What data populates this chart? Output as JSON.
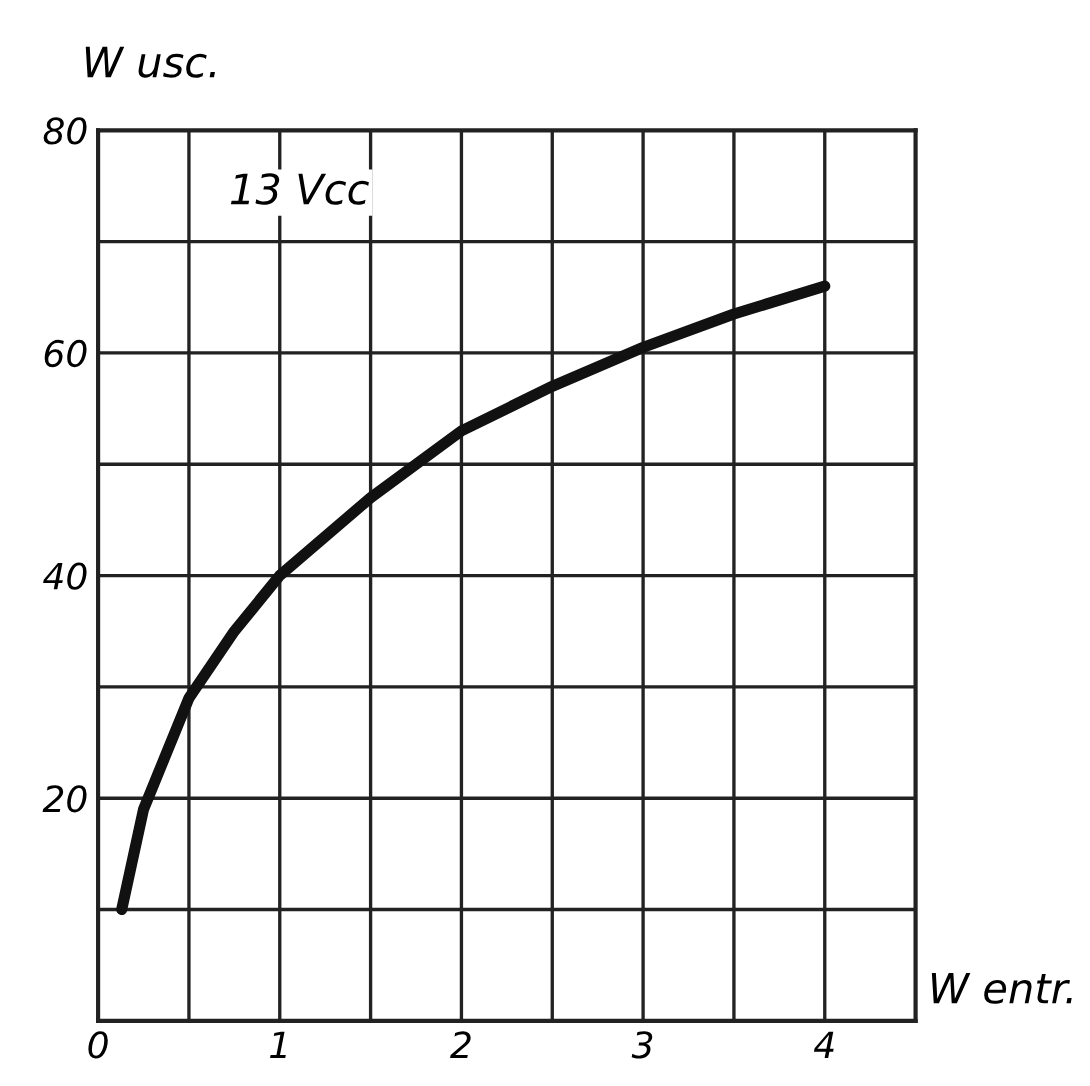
{
  "chart_data": {
    "type": "line",
    "xlabel": "W entr.",
    "ylabel": "W usc.",
    "annotations": [
      "13 Vcc"
    ],
    "x": [
      0.13,
      0.25,
      0.5,
      0.75,
      1,
      1.5,
      2,
      2.5,
      3,
      3.5,
      4
    ],
    "series": [
      {
        "color": "#111111",
        "values": [
          10,
          19,
          29,
          35,
          40,
          47,
          53,
          57,
          60.5,
          63.5,
          66
        ]
      }
    ],
    "xlim": [
      0,
      4.5
    ],
    "ylim": [
      0,
      80
    ],
    "xticks": [
      0,
      {
        "value": 0.5,
        "label": null
      },
      1,
      {
        "value": 1.5,
        "label": null
      },
      2,
      {
        "value": 2.5,
        "label": null
      },
      3,
      {
        "value": 3.5,
        "label": null
      },
      4,
      {
        "value": 4.5,
        "label": null
      }
    ],
    "yticks": [
      {
        "value": 10,
        "label": null
      },
      20,
      {
        "value": 30,
        "label": null
      },
      40,
      {
        "value": 50,
        "label": null
      },
      60,
      {
        "value": 70,
        "label": null
      },
      80
    ],
    "grid": true,
    "marker": "none",
    "line_style": "solid",
    "legend": false
  }
}
